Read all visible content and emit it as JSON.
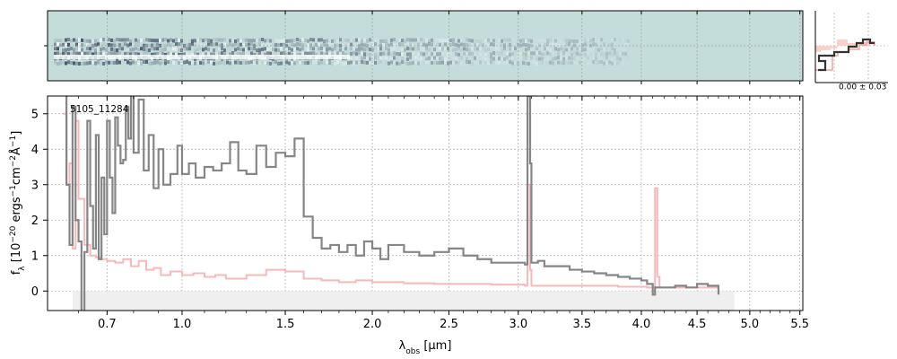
{
  "chart_data": {
    "type": "line",
    "object_id": "5105_11284",
    "xlabel_parts": {
      "sym": "λ",
      "sub": "obs",
      "unit": " [μm]"
    },
    "ylabel_parts": {
      "f": "f",
      "fsub": "λ",
      "open": " [10",
      "p1": "−20",
      "mid": " ergs",
      "p2": "−1",
      "cm": "cm",
      "p3": "−2",
      "ang": "Å",
      "p4": "−1",
      "close": "]"
    },
    "xlim": [
      0.5,
      5.53
    ],
    "ylim": [
      -0.55,
      5.5
    ],
    "x_ticks": [
      0.7,
      1.0,
      1.5,
      2.0,
      2.5,
      3.0,
      3.5,
      4.0,
      4.5,
      5.0,
      5.5
    ],
    "x_tick_labels": [
      "0.7",
      "1.0",
      "1.5",
      "2.0",
      "2.5",
      "3.0",
      "3.5",
      "4.0",
      "4.5",
      "5.0",
      "5.5"
    ],
    "y_ticks": [
      0,
      1,
      2,
      3,
      4,
      5
    ],
    "y_tick_labels": [
      "0",
      "1",
      "2",
      "3",
      "4",
      "5"
    ],
    "grid": true,
    "inset_label": "0.00 ± 0.03",
    "colors": {
      "data": "#808080",
      "model": "#f8b8b8",
      "overlap": "#a05858",
      "twod_bg": "#c4dcda",
      "twod_dark": "#2c3550",
      "grid": "#b0b0b0",
      "zero_band": "#efefef"
    },
    "series": [
      {
        "role": "data",
        "x": [
          0.55,
          0.56,
          0.57,
          0.58,
          0.59,
          0.6,
          0.61,
          0.62,
          0.63,
          0.64,
          0.65,
          0.66,
          0.67,
          0.68,
          0.69,
          0.7,
          0.71,
          0.72,
          0.73,
          0.74,
          0.75,
          0.76,
          0.77,
          0.78,
          0.79,
          0.8,
          0.82,
          0.84,
          0.86,
          0.88,
          0.9,
          0.92,
          0.95,
          0.98,
          1.0,
          1.03,
          1.06,
          1.1,
          1.14,
          1.18,
          1.22,
          1.26,
          1.3,
          1.35,
          1.4,
          1.45,
          1.5,
          1.55,
          1.6,
          1.65,
          1.7,
          1.75,
          1.8,
          1.85,
          1.9,
          1.95,
          2.0,
          2.05,
          2.1,
          2.2,
          2.3,
          2.4,
          2.5,
          2.6,
          2.7,
          2.8,
          2.9,
          3.0,
          3.05,
          3.07,
          3.09,
          3.1,
          3.15,
          3.2,
          3.3,
          3.4,
          3.5,
          3.6,
          3.7,
          3.8,
          3.9,
          4.0,
          4.05,
          4.1,
          4.12,
          4.15,
          4.2,
          4.3,
          4.4,
          4.5,
          4.6,
          4.7
        ],
        "y": [
          5.8,
          3.0,
          1.3,
          5.2,
          2.0,
          1.4,
          -0.6,
          1.1,
          4.8,
          2.4,
          1.2,
          4.4,
          0.9,
          3.2,
          1.6,
          4.8,
          3.2,
          2.2,
          4.9,
          4.1,
          3.6,
          3.7,
          5.2,
          4.3,
          5.6,
          3.9,
          5.4,
          3.4,
          4.4,
          2.9,
          4.0,
          3.0,
          3.3,
          4.1,
          3.3,
          3.6,
          3.2,
          3.5,
          3.4,
          3.6,
          4.2,
          3.4,
          3.3,
          4.1,
          3.5,
          3.9,
          3.8,
          4.3,
          2.1,
          1.5,
          1.2,
          1.3,
          1.1,
          1.3,
          1.0,
          1.4,
          1.2,
          0.9,
          1.3,
          1.1,
          1.0,
          1.1,
          1.2,
          1.0,
          0.9,
          0.8,
          0.8,
          0.8,
          0.75,
          5.5,
          3.6,
          0.8,
          0.85,
          0.7,
          0.7,
          0.6,
          0.55,
          0.5,
          0.45,
          0.4,
          0.35,
          0.3,
          0.2,
          -0.1,
          0.1,
          0.1,
          0.1,
          0.15,
          0.1,
          0.2,
          0.15,
          -0.1
        ]
      },
      {
        "role": "model",
        "x": [
          0.55,
          0.56,
          0.57,
          0.58,
          0.59,
          0.6,
          0.62,
          0.64,
          0.66,
          0.68,
          0.7,
          0.73,
          0.76,
          0.79,
          0.82,
          0.85,
          0.88,
          0.91,
          0.95,
          1.0,
          1.05,
          1.1,
          1.15,
          1.2,
          1.3,
          1.4,
          1.5,
          1.6,
          1.7,
          1.8,
          1.9,
          2.0,
          2.2,
          2.4,
          2.6,
          2.8,
          3.0,
          3.05,
          3.07,
          3.09,
          3.1,
          3.2,
          3.4,
          3.6,
          3.8,
          4.0,
          4.05,
          4.1,
          4.12,
          4.14,
          4.16,
          4.2,
          4.4,
          4.6,
          4.7
        ],
        "y": [
          5.0,
          3.0,
          3.6,
          1.2,
          4.8,
          2.6,
          1.3,
          1.0,
          0.95,
          0.9,
          0.85,
          0.8,
          0.9,
          0.7,
          0.85,
          0.6,
          0.65,
          0.45,
          0.55,
          0.45,
          0.5,
          0.4,
          0.45,
          0.35,
          0.45,
          0.6,
          0.55,
          0.35,
          0.3,
          0.25,
          0.3,
          0.25,
          0.22,
          0.2,
          0.2,
          0.18,
          0.18,
          0.15,
          3.0,
          0.6,
          0.15,
          0.15,
          0.15,
          0.15,
          0.12,
          0.12,
          0.1,
          0.1,
          2.9,
          0.4,
          0.1,
          0.1,
          0.1,
          0.1,
          0.1
        ]
      }
    ]
  }
}
